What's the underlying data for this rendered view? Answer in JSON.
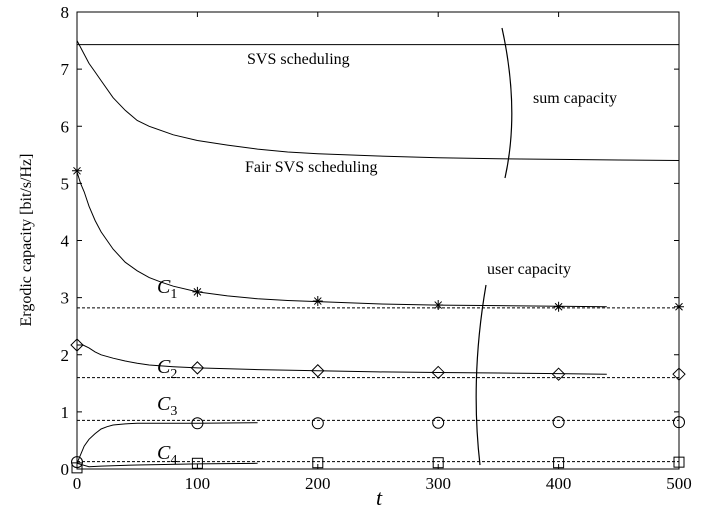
{
  "chart_data": {
    "type": "line",
    "xlabel": "t",
    "ylabel": "Ergodic capacity [bit/s/Hz]",
    "xlim": [
      0,
      500
    ],
    "ylim": [
      0,
      8
    ],
    "xticks": [
      0,
      100,
      200,
      300,
      400,
      500
    ],
    "yticks": [
      0,
      1,
      2,
      3,
      4,
      5,
      6,
      7,
      8
    ],
    "grid": false,
    "series": [
      {
        "key": "svs_sum",
        "style": "solid",
        "x": [
          0,
          500
        ],
        "y": [
          7.43,
          7.43
        ]
      },
      {
        "key": "fair_sum",
        "style": "solid",
        "x": [
          0,
          2,
          5,
          10,
          15,
          20,
          30,
          40,
          50,
          60,
          80,
          100,
          125,
          150,
          175,
          200,
          250,
          300,
          350,
          400,
          450,
          500
        ],
        "y": [
          7.5,
          7.42,
          7.3,
          7.1,
          6.95,
          6.8,
          6.5,
          6.28,
          6.1,
          6.0,
          5.85,
          5.75,
          5.67,
          5.6,
          5.55,
          5.52,
          5.48,
          5.45,
          5.43,
          5.42,
          5.41,
          5.4
        ]
      },
      {
        "key": "c1_fair",
        "style": "solid",
        "x": [
          0,
          3,
          6,
          10,
          15,
          20,
          30,
          40,
          50,
          60,
          70,
          80,
          100,
          125,
          150,
          175,
          200,
          250,
          300,
          350,
          400,
          440
        ],
        "y": [
          5.2,
          5.0,
          4.85,
          4.6,
          4.35,
          4.15,
          3.85,
          3.62,
          3.47,
          3.35,
          3.27,
          3.2,
          3.1,
          3.03,
          2.98,
          2.95,
          2.93,
          2.89,
          2.87,
          2.86,
          2.85,
          2.84
        ]
      },
      {
        "key": "c1_svs",
        "style": "dashed",
        "x": [
          0,
          500
        ],
        "y": [
          2.82,
          2.82
        ]
      },
      {
        "key": "c1_markers",
        "marker": "star",
        "x": [
          0,
          100,
          200,
          300,
          400,
          500
        ],
        "y": [
          5.22,
          3.1,
          2.94,
          2.87,
          2.84,
          2.84
        ]
      },
      {
        "key": "c2_fair",
        "style": "solid",
        "x": [
          0,
          5,
          10,
          15,
          20,
          30,
          40,
          50,
          60,
          80,
          100,
          150,
          200,
          250,
          300,
          350,
          400,
          440
        ],
        "y": [
          2.17,
          2.17,
          2.12,
          2.05,
          2.0,
          1.94,
          1.89,
          1.85,
          1.82,
          1.79,
          1.77,
          1.74,
          1.72,
          1.7,
          1.69,
          1.68,
          1.67,
          1.66
        ]
      },
      {
        "key": "c2_svs",
        "style": "dashed",
        "x": [
          0,
          500
        ],
        "y": [
          1.6,
          1.6
        ]
      },
      {
        "key": "c2_markers",
        "marker": "diamond",
        "x": [
          0,
          100,
          200,
          300,
          400,
          500
        ],
        "y": [
          2.17,
          1.77,
          1.72,
          1.69,
          1.66,
          1.66
        ]
      },
      {
        "key": "c3_fair",
        "style": "solid",
        "x": [
          0,
          3,
          6,
          10,
          15,
          20,
          25,
          30,
          40,
          50,
          60,
          70,
          80,
          100,
          150
        ],
        "y": [
          0.1,
          0.25,
          0.4,
          0.52,
          0.62,
          0.7,
          0.74,
          0.77,
          0.79,
          0.8,
          0.8,
          0.8,
          0.8,
          0.8,
          0.81
        ]
      },
      {
        "key": "c3_svs",
        "style": "dashed",
        "x": [
          0,
          500
        ],
        "y": [
          0.85,
          0.85
        ]
      },
      {
        "key": "c3_markers",
        "marker": "circle",
        "x": [
          0,
          100,
          200,
          300,
          400,
          500
        ],
        "y": [
          0.12,
          0.8,
          0.8,
          0.81,
          0.82,
          0.82
        ]
      },
      {
        "key": "c4_fair",
        "style": "solid",
        "x": [
          0,
          10,
          20,
          50,
          100,
          150
        ],
        "y": [
          0.1,
          0.04,
          0.05,
          0.07,
          0.09,
          0.1
        ]
      },
      {
        "key": "c4_svs",
        "style": "dashed",
        "x": [
          0,
          500
        ],
        "y": [
          0.13,
          0.13
        ]
      },
      {
        "key": "c4_markers",
        "marker": "square",
        "x": [
          0,
          100,
          200,
          300,
          400,
          500
        ],
        "y": [
          0.02,
          0.1,
          0.11,
          0.11,
          0.11,
          0.12
        ]
      }
    ],
    "annotations": {
      "svs": "SVS scheduling",
      "fair": "Fair SVS scheduling",
      "sum": "sum capacity",
      "user": "user capacity",
      "c_letter": "C",
      "c1_sub": "1",
      "c2_sub": "2",
      "c3_sub": "3",
      "c4_sub": "4"
    }
  }
}
